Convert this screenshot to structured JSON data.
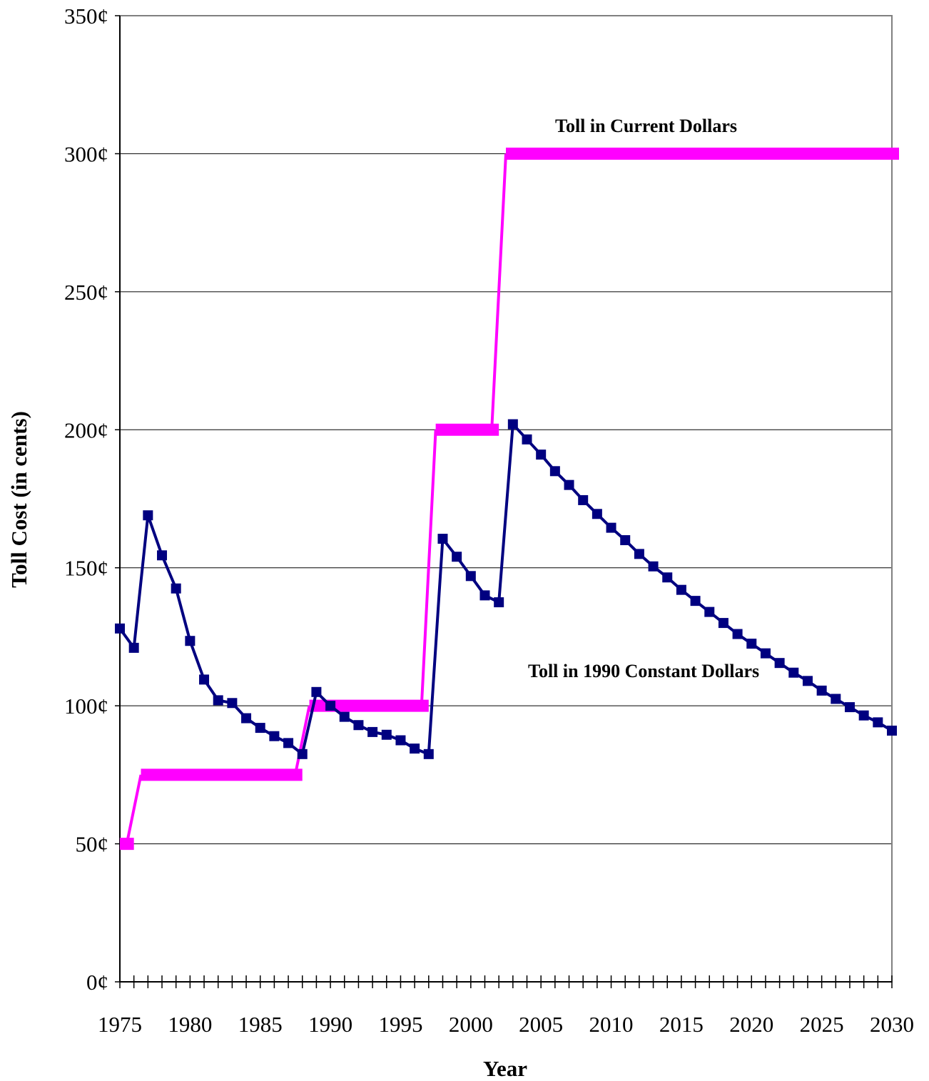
{
  "chart_data": {
    "type": "line",
    "title": "",
    "xlabel": "Year",
    "ylabel": "Toll Cost (in cents)",
    "xlim": [
      1975,
      2030
    ],
    "ylim": [
      0,
      350
    ],
    "x_ticks": [
      1975,
      1980,
      1985,
      1990,
      1995,
      2000,
      2005,
      2010,
      2015,
      2020,
      2025,
      2030
    ],
    "y_ticks": [
      "0¢",
      "50¢",
      "100¢",
      "150¢",
      "200¢",
      "250¢",
      "300¢",
      "350¢"
    ],
    "y_tick_values": [
      0,
      50,
      100,
      150,
      200,
      250,
      300,
      350
    ],
    "grid": "horizontal",
    "legend": "none",
    "annotations": {
      "current": "Toll in Current Dollars",
      "constant": "Toll in 1990 Constant Dollars"
    },
    "series": [
      {
        "name": "Toll in 1990 Constant Dollars",
        "color": "#000080",
        "marker": "square",
        "points": [
          [
            1975,
            128
          ],
          [
            1976,
            121
          ],
          [
            1977,
            169
          ],
          [
            1978,
            154.5
          ],
          [
            1979,
            142.5
          ],
          [
            1980,
            123.5
          ],
          [
            1981,
            109.5
          ],
          [
            1982,
            102
          ],
          [
            1983,
            101
          ],
          [
            1984,
            95.5
          ],
          [
            1985,
            92
          ],
          [
            1986,
            89
          ],
          [
            1987,
            86.5
          ],
          [
            1988,
            82.5
          ],
          [
            1989,
            105
          ],
          [
            1990,
            100
          ],
          [
            1991,
            96
          ],
          [
            1992,
            93
          ],
          [
            1993,
            90.5
          ],
          [
            1994,
            89.5
          ],
          [
            1995,
            87.5
          ],
          [
            1996,
            84.5
          ],
          [
            1997,
            82.5
          ],
          [
            1998,
            160.5
          ],
          [
            1999,
            154
          ],
          [
            2000,
            147
          ],
          [
            2001,
            140
          ],
          [
            2002,
            137.5
          ],
          [
            2003,
            202
          ],
          [
            2004,
            196.5
          ],
          [
            2005,
            191
          ],
          [
            2006,
            185
          ],
          [
            2007,
            180
          ],
          [
            2008,
            174.5
          ],
          [
            2009,
            169.5
          ],
          [
            2010,
            164.5
          ],
          [
            2011,
            160
          ],
          [
            2012,
            155
          ],
          [
            2013,
            150.5
          ],
          [
            2014,
            146.5
          ],
          [
            2015,
            142
          ],
          [
            2016,
            138
          ],
          [
            2017,
            134
          ],
          [
            2018,
            130
          ],
          [
            2019,
            126
          ],
          [
            2020,
            122.5
          ],
          [
            2021,
            119
          ],
          [
            2022,
            115.5
          ],
          [
            2023,
            112
          ],
          [
            2024,
            109
          ],
          [
            2025,
            105.5
          ],
          [
            2026,
            102.5
          ],
          [
            2027,
            99.5
          ],
          [
            2028,
            96.5
          ],
          [
            2029,
            94
          ],
          [
            2030,
            91
          ]
        ]
      },
      {
        "name": "Toll in Current Dollars",
        "color": "#FF00FF",
        "style": "step",
        "points": [
          [
            1975,
            50
          ],
          [
            1976,
            50
          ],
          [
            1977,
            75
          ],
          [
            1988,
            75
          ],
          [
            1989,
            100
          ],
          [
            1997,
            100
          ],
          [
            1998,
            200
          ],
          [
            2002,
            200
          ],
          [
            2003,
            300
          ],
          [
            2030,
            300
          ]
        ]
      }
    ]
  }
}
